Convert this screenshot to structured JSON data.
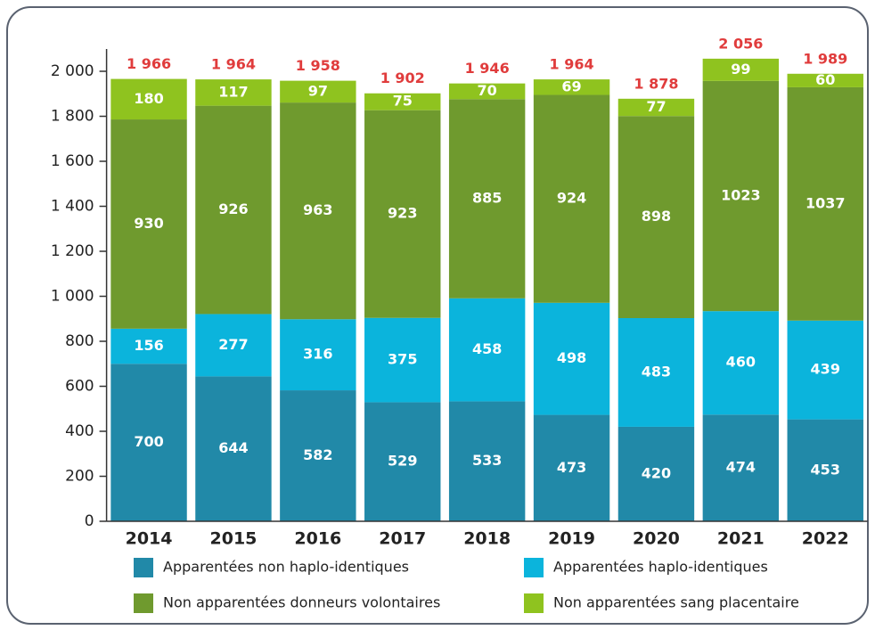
{
  "chart_data": {
    "type": "stacked-bar",
    "categories": [
      "2014",
      "2015",
      "2016",
      "2017",
      "2018",
      "2019",
      "2020",
      "2021",
      "2022"
    ],
    "series": [
      {
        "name": "Apparentées non haplo-identiques",
        "color": "#2189a8",
        "values": [
          700,
          644,
          582,
          529,
          533,
          473,
          420,
          474,
          453
        ]
      },
      {
        "name": "Apparentées haplo-identiques",
        "color": "#0bb4dc",
        "values": [
          156,
          277,
          316,
          375,
          458,
          498,
          483,
          460,
          439
        ]
      },
      {
        "name": "Non apparentées donneurs volontaires",
        "color": "#6f9a2e",
        "values": [
          930,
          926,
          963,
          923,
          885,
          924,
          898,
          1023,
          1037
        ]
      },
      {
        "name": "Non apparentées sang placentaire",
        "color": "#8fc31f",
        "values": [
          180,
          117,
          97,
          75,
          70,
          69,
          77,
          99,
          60
        ]
      }
    ],
    "totals": [
      1966,
      1964,
      1958,
      1902,
      1946,
      1964,
      1878,
      2056,
      1989
    ],
    "total_labels": [
      "1 966",
      "1 964",
      "1 958",
      "1 902",
      "1 946",
      "1 964",
      "1 878",
      "2 056",
      "1 989"
    ],
    "total_color": "#e03c3c",
    "ylim": [
      0,
      2000
    ],
    "yticks": [
      0,
      200,
      400,
      600,
      800,
      {
        "value": 1000,
        "label": "1 000"
      },
      {
        "value": 1200,
        "label": "1 200"
      },
      {
        "value": 1400,
        "label": "1 400"
      },
      {
        "value": 1600,
        "label": "1 600"
      },
      {
        "value": 1800,
        "label": "1 800"
      },
      {
        "value": 2000,
        "label": "2 000"
      }
    ],
    "grid": false
  }
}
